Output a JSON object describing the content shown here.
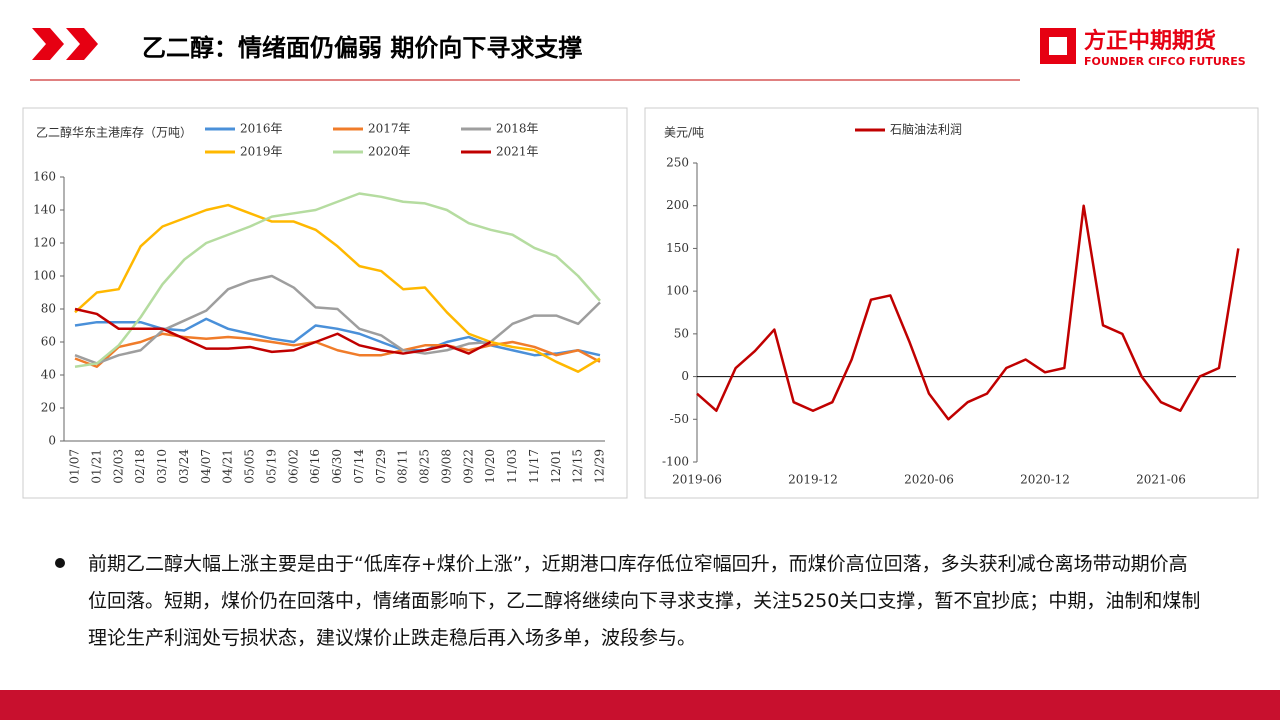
{
  "header": {
    "title": "乙二醇：情绪面仍偏弱 期价向下寻求支撑",
    "logo": "方正中期期货",
    "logo_en": "FOUNDER CIFCO FUTURES"
  },
  "body": {
    "bullet": "前期乙二醇大幅上涨主要是由于“低库存+煤价上涨”，近期港口库存低位窄幅回升，而煤价高位回落，多头获利减仓离场带动期价高位回落。短期，煤价仍在回落中，情绪面影响下，乙二醇将继续向下寻求支撑，关注5250关口支撑，暂不宜抄底；中期，油制和煤制理论生产利润处亏损状态，建议煤价止跌走稳后再入场多单，波段参与。"
  },
  "chart_data": [
    {
      "type": "line",
      "y_label": "乙二醇华东主港库存（万吨）",
      "categories": [
        "01/07",
        "01/21",
        "02/03",
        "02/18",
        "03/10",
        "03/24",
        "04/07",
        "04/21",
        "05/05",
        "05/19",
        "06/02",
        "06/16",
        "06/30",
        "07/14",
        "07/29",
        "08/11",
        "08/25",
        "09/08",
        "09/22",
        "10/20",
        "11/03",
        "11/17",
        "12/01",
        "12/15",
        "12/29"
      ],
      "series": [
        {
          "name": "2016年",
          "color": "#4a90d9",
          "values": [
            70,
            72,
            72,
            72,
            68,
            67,
            74,
            68,
            65,
            62,
            60,
            70,
            68,
            65,
            60,
            55,
            55,
            60,
            63,
            58,
            55,
            52,
            53,
            55,
            52
          ]
        },
        {
          "name": "2017年",
          "color": "#f07c2a",
          "values": [
            50,
            45,
            57,
            60,
            65,
            63,
            62,
            63,
            62,
            60,
            58,
            60,
            55,
            52,
            52,
            55,
            58,
            58,
            55,
            58,
            60,
            57,
            52,
            55,
            48
          ]
        },
        {
          "name": "2018年",
          "color": "#9e9e9e",
          "values": [
            52,
            47,
            52,
            55,
            67,
            73,
            79,
            92,
            97,
            100,
            93,
            81,
            80,
            68,
            64,
            55,
            53,
            55,
            59,
            60,
            71,
            76,
            76,
            71,
            84
          ]
        },
        {
          "name": "2019年",
          "color": "#ffb800",
          "values": [
            78,
            90,
            92,
            118,
            130,
            135,
            140,
            143,
            138,
            133,
            133,
            128,
            118,
            106,
            103,
            92,
            93,
            78,
            65,
            60,
            57,
            55,
            48,
            42,
            50
          ]
        },
        {
          "name": "2020年",
          "color": "#b5dca0",
          "values": [
            45,
            47,
            58,
            75,
            95,
            110,
            120,
            125,
            130,
            136,
            138,
            140,
            145,
            150,
            148,
            145,
            144,
            140,
            132,
            128,
            125,
            117,
            112,
            100,
            85
          ]
        },
        {
          "name": "2021年",
          "color": "#c00000",
          "values": [
            80,
            77,
            68,
            68,
            68,
            62,
            56,
            56,
            57,
            54,
            55,
            60,
            65,
            58,
            55,
            53,
            55,
            58,
            53,
            60,
            null,
            null,
            null,
            null,
            null
          ]
        }
      ],
      "ylim": [
        0,
        160
      ],
      "yticks": [
        0,
        20,
        40,
        60,
        80,
        100,
        120,
        140,
        160
      ]
    },
    {
      "type": "line",
      "y_label": "美元/吨",
      "categories": [
        "2019-06",
        null,
        null,
        null,
        null,
        null,
        "2019-12",
        null,
        null,
        null,
        null,
        null,
        "2020-06",
        null,
        null,
        null,
        null,
        null,
        "2020-12",
        null,
        null,
        null,
        null,
        null,
        "2021-06",
        null,
        null,
        null,
        null
      ],
      "series": [
        {
          "name": "石脑油法利润",
          "color": "#c00000",
          "values": [
            -20,
            -40,
            10,
            30,
            55,
            -30,
            -40,
            -30,
            20,
            90,
            95,
            40,
            -20,
            -50,
            -30,
            -20,
            10,
            20,
            5,
            10,
            200,
            60,
            50,
            0,
            -30,
            -40,
            0,
            10,
            150
          ]
        }
      ],
      "ylim": [
        -100,
        250
      ],
      "yticks": [
        -100,
        -50,
        0,
        50,
        100,
        150,
        200,
        250
      ]
    }
  ]
}
